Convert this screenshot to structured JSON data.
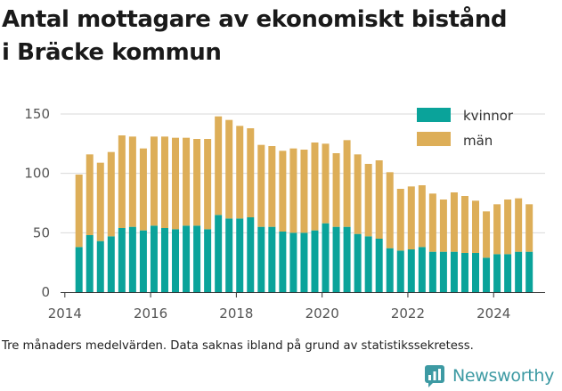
{
  "title_line1": "Antal mottagare av ekonomiskt bistånd",
  "title_line2": "i Bräcke kommun",
  "caption": "Tre månaders medelvärden. Data saknas ibland på grund av statistikssekretess.",
  "brand": {
    "name": "Newsworthy",
    "icon": "newsworthy-logo-icon",
    "color": "#3d9aa3"
  },
  "chart_data": {
    "type": "bar",
    "stacked": true,
    "x": [
      2014.33,
      2014.58,
      2014.83,
      2015.08,
      2015.33,
      2015.58,
      2015.83,
      2016.08,
      2016.33,
      2016.58,
      2016.83,
      2017.08,
      2017.33,
      2017.58,
      2017.83,
      2018.08,
      2018.33,
      2018.58,
      2018.83,
      2019.08,
      2019.33,
      2019.58,
      2019.83,
      2020.08,
      2020.33,
      2020.58,
      2020.83,
      2021.08,
      2021.33,
      2021.58,
      2021.83,
      2022.08,
      2022.33,
      2022.58,
      2022.83,
      2023.08,
      2023.33,
      2023.58,
      2023.83,
      2024.08,
      2024.33,
      2024.58,
      2024.83
    ],
    "series": [
      {
        "name": "kvinnor",
        "color": "#0aa39a",
        "values": [
          38,
          48,
          43,
          47,
          54,
          55,
          52,
          56,
          54,
          53,
          56,
          56,
          53,
          65,
          62,
          62,
          63,
          55,
          55,
          51,
          50,
          50,
          52,
          58,
          55,
          55,
          49,
          47,
          45,
          37,
          35,
          36,
          38,
          34,
          34,
          34,
          33,
          33,
          29,
          32,
          32,
          34,
          34
        ]
      },
      {
        "name": "män",
        "color": "#ddae58",
        "values": [
          61,
          68,
          66,
          71,
          78,
          76,
          69,
          75,
          77,
          77,
          74,
          73,
          76,
          83,
          83,
          78,
          75,
          69,
          68,
          68,
          71,
          70,
          74,
          67,
          62,
          73,
          67,
          61,
          66,
          64,
          52,
          53,
          52,
          49,
          44,
          50,
          48,
          44,
          39,
          42,
          46,
          45,
          40
        ]
      }
    ],
    "x_ticks": [
      "2014",
      "2016",
      "2018",
      "2020",
      "2022",
      "2024"
    ],
    "x_tick_values": [
      2014,
      2016,
      2018,
      2020,
      2022,
      2024
    ],
    "y_ticks": [
      "0",
      "50",
      "100",
      "150"
    ],
    "y_tick_values": [
      0,
      50,
      100,
      150
    ],
    "xlim": [
      2013.9,
      2025.2
    ],
    "ylim": [
      0,
      150
    ],
    "grid": "horizontal",
    "legend_position": "top-right"
  }
}
